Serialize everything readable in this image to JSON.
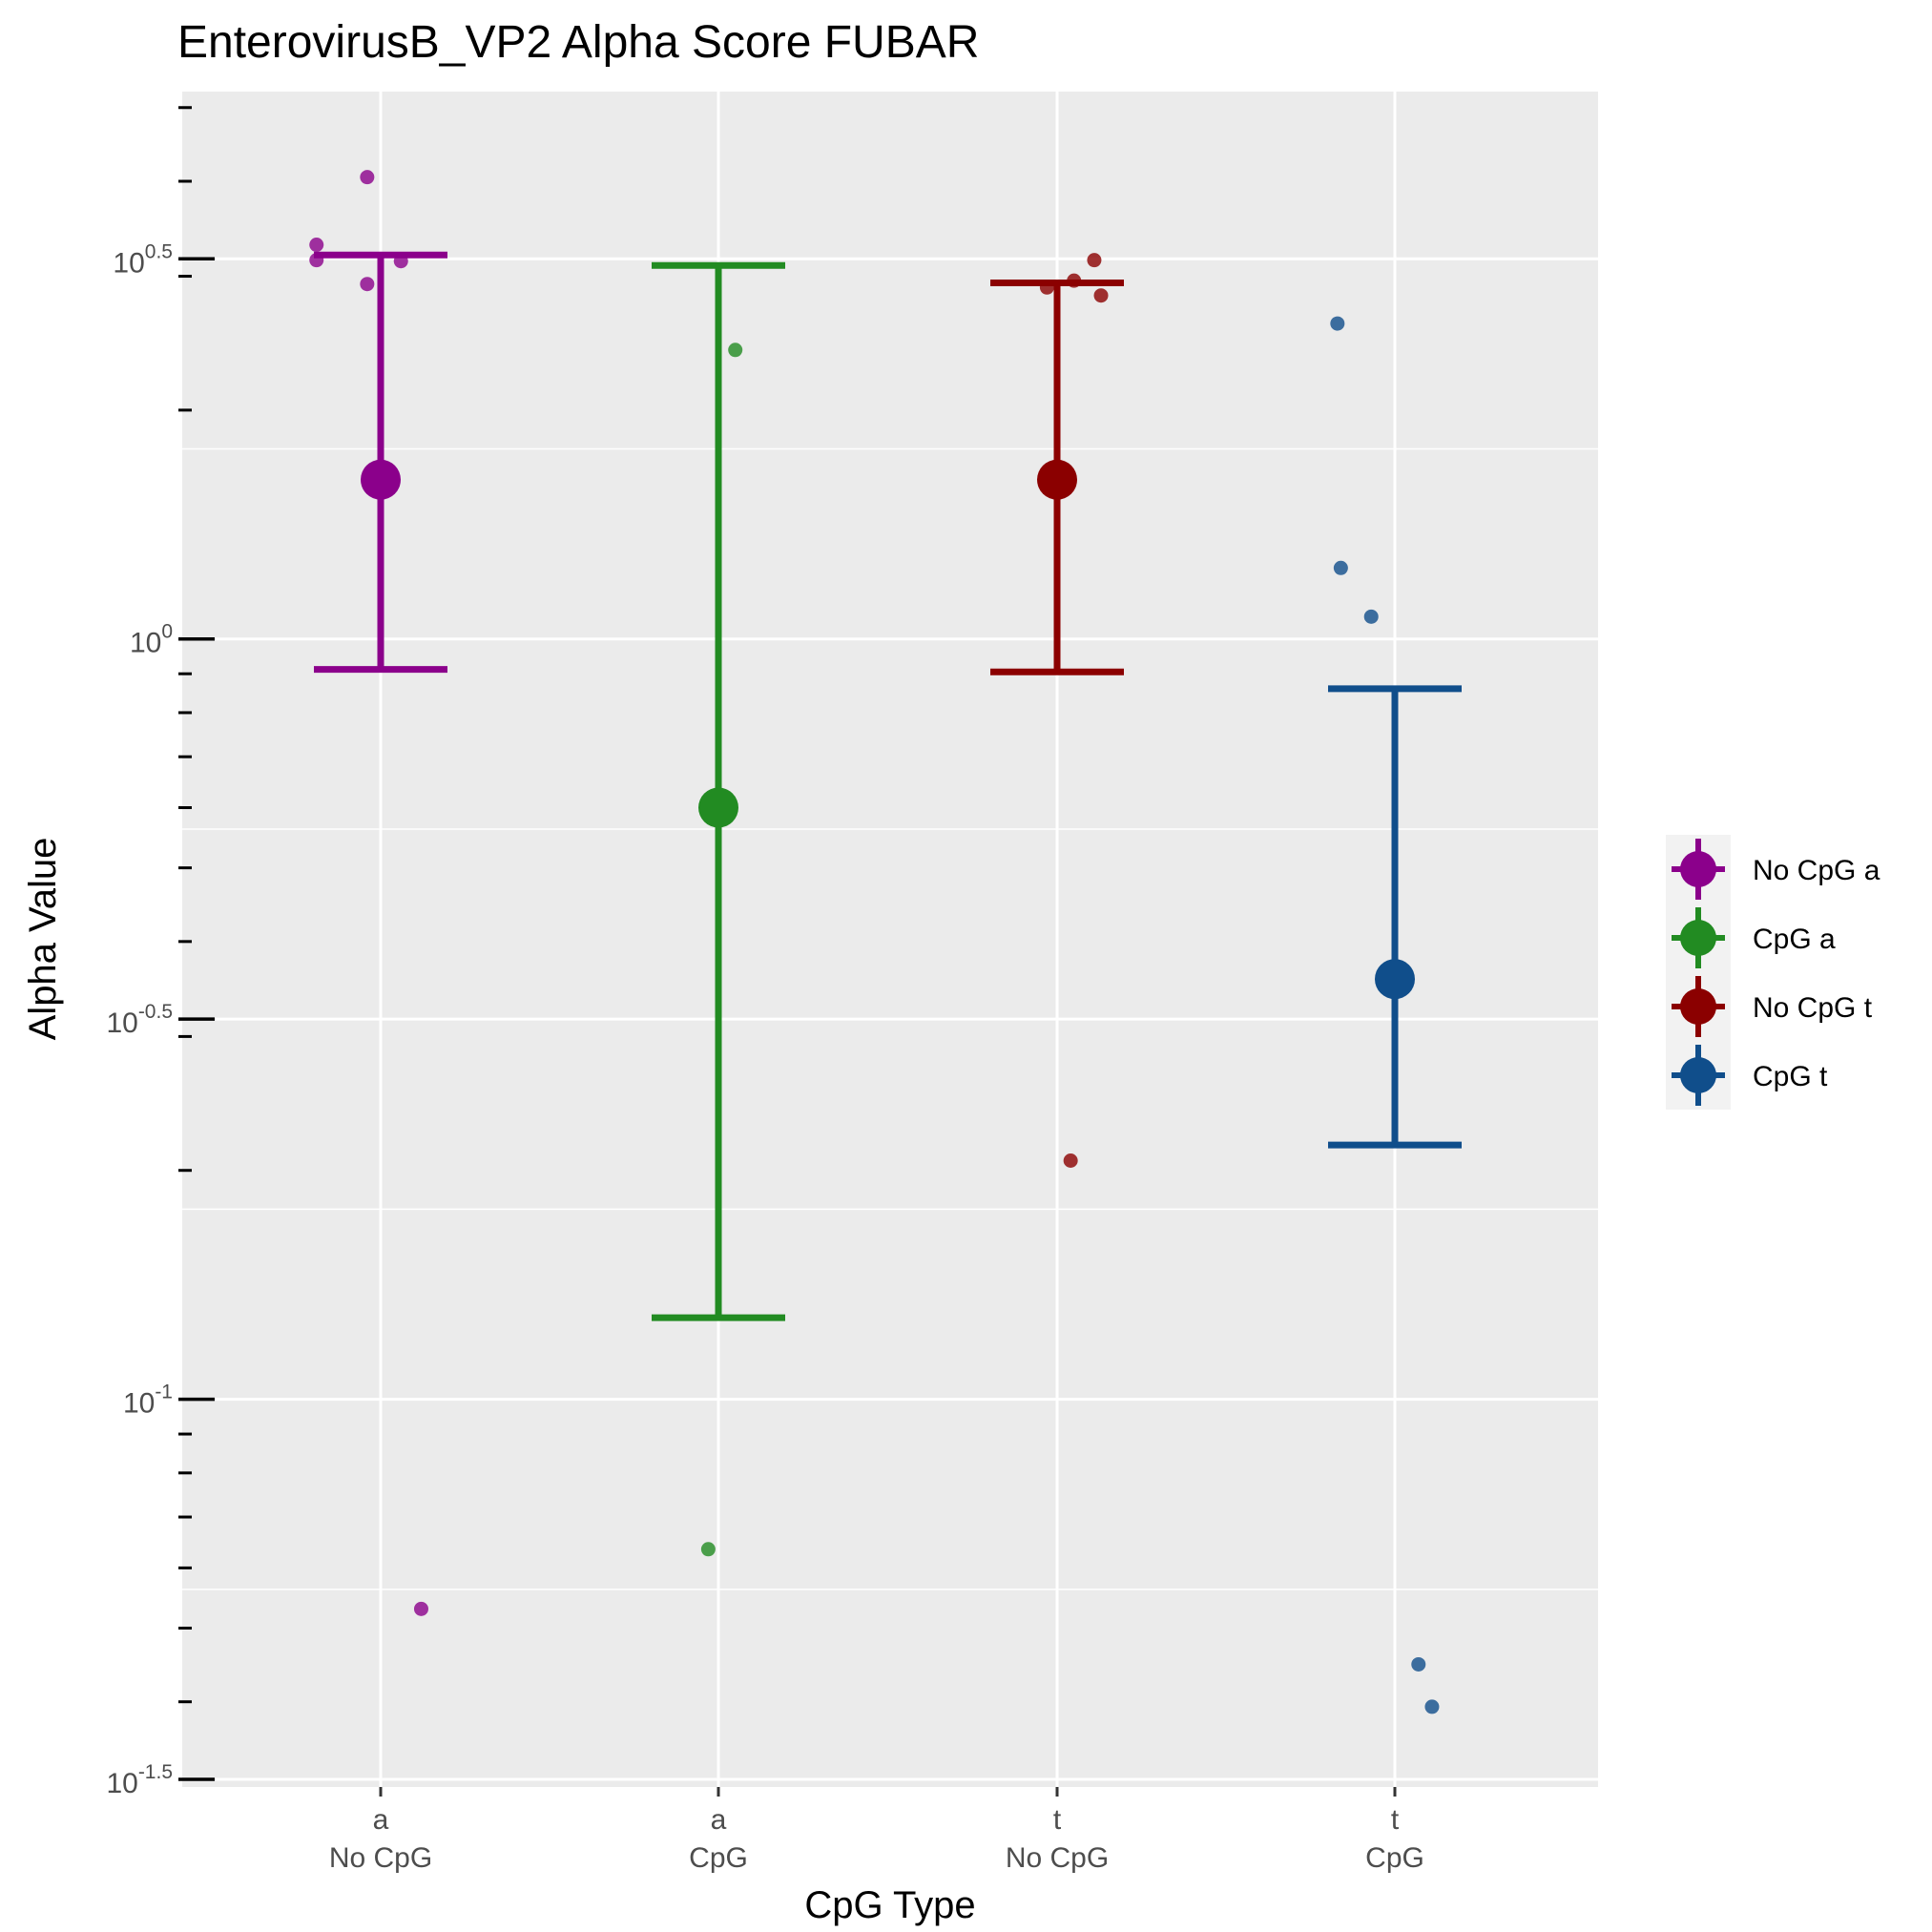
{
  "chart_data": {
    "type": "scatter",
    "title": "EnterovirusB_VP2 Alpha Score FUBAR",
    "xlabel": "CpG Type",
    "ylabel": "Alpha Value",
    "y_scale": "log10",
    "ylim_log10": [
      -1.51,
      0.72
    ],
    "grid": true,
    "panel_background": "#ebebeb",
    "legend_position": "right",
    "y_ticks": [
      {
        "log10": 0.5,
        "base": "10",
        "exp": "0.5"
      },
      {
        "log10": 0,
        "base": "10",
        "exp": "0"
      },
      {
        "log10": -0.5,
        "base": "10",
        "exp": "-0.5"
      },
      {
        "log10": -1,
        "base": "10",
        "exp": "-1"
      },
      {
        "log10": -1.5,
        "base": "10",
        "exp": "-1.5"
      }
    ],
    "categories": [
      {
        "line1": "a",
        "line2": "No CpG"
      },
      {
        "line1": "a",
        "line2": "CpG"
      },
      {
        "line1": "t",
        "line2": "No CpG"
      },
      {
        "line1": "t",
        "line2": "CpG"
      }
    ],
    "series": [
      {
        "name": "No CpG a",
        "color": "#8b008b",
        "category": 0,
        "mean": 1.62,
        "ci_low": 0.912,
        "ci_high": 3.2,
        "points": [
          {
            "jitter": -0.19,
            "y": 3.3
          },
          {
            "jitter": -0.19,
            "y": 3.15
          },
          {
            "jitter": -0.04,
            "y": 4.05
          },
          {
            "jitter": -0.04,
            "y": 2.93
          },
          {
            "jitter": 0.06,
            "y": 3.14
          },
          {
            "jitter": 0.12,
            "y": 0.053
          }
        ]
      },
      {
        "name": "CpG a",
        "color": "#228b22",
        "category": 1,
        "mean": 0.6,
        "ci_low": 0.128,
        "ci_high": 3.1,
        "points": [
          {
            "jitter": 0.05,
            "y": 2.4
          },
          {
            "jitter": -0.03,
            "y": 0.0635
          }
        ]
      },
      {
        "name": "No CpG t",
        "color": "#8b0000",
        "category": 2,
        "mean": 1.62,
        "ci_low": 0.905,
        "ci_high": 2.94,
        "points": [
          {
            "jitter": -0.03,
            "y": 2.9
          },
          {
            "jitter": 0.05,
            "y": 2.96
          },
          {
            "jitter": 0.11,
            "y": 3.15
          },
          {
            "jitter": 0.13,
            "y": 2.83
          },
          {
            "jitter": 0.04,
            "y": 0.206
          }
        ]
      },
      {
        "name": "CpG t",
        "color": "#104e8b",
        "category": 3,
        "mean": 0.357,
        "ci_low": 0.216,
        "ci_high": 0.86,
        "points": [
          {
            "jitter": -0.17,
            "y": 2.6
          },
          {
            "jitter": -0.16,
            "y": 1.24
          },
          {
            "jitter": -0.07,
            "y": 1.07
          },
          {
            "jitter": 0.07,
            "y": 0.0448
          },
          {
            "jitter": 0.11,
            "y": 0.0394
          }
        ]
      }
    ]
  }
}
